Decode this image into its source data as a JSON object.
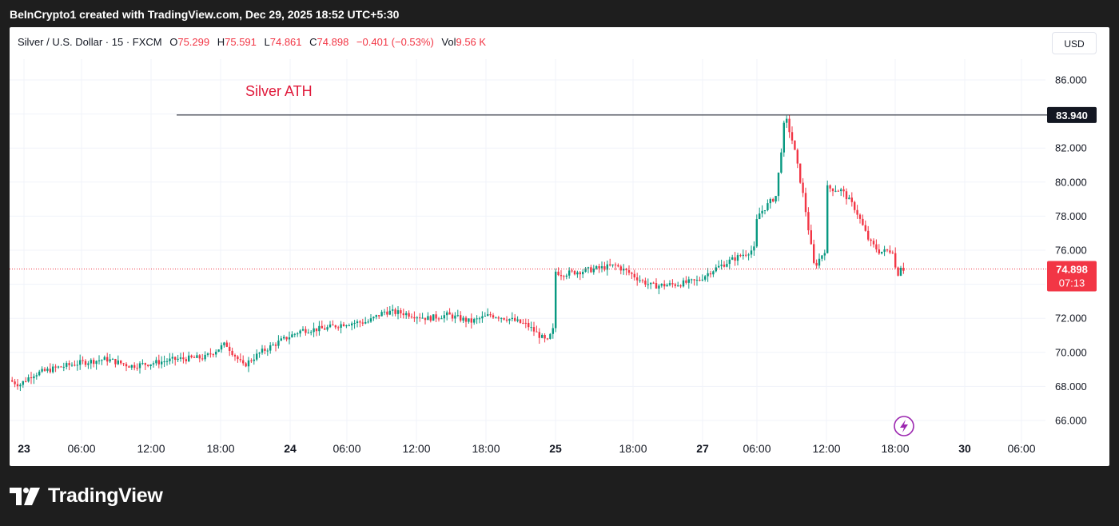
{
  "header": {
    "credit": "BeInCrypto1 created with TradingView.com, Dec 29, 2025 18:52 UTC+5:30"
  },
  "legend": {
    "symbol": "Silver / U.S. Dollar · 15 · FXCM",
    "open_label": "O",
    "open": "75.299",
    "high_label": "H",
    "high": "75.591",
    "low_label": "L",
    "low": "74.861",
    "close_label": "C",
    "close": "74.898",
    "change": "−0.401 (−0.53%)",
    "vol_label": "Vol",
    "vol": "9.56 K"
  },
  "currency_button": "USD",
  "footer": {
    "brand": "TradingView"
  },
  "colors": {
    "up": "#089981",
    "down": "#f23645",
    "annotation": "#e0193a",
    "accent": "#9c27b0"
  },
  "chart_data": {
    "type": "candlestick",
    "title": "Silver / U.S. Dollar · 15 · FXCM",
    "ylim": [
      65.0,
      87.0
    ],
    "y_ticks": [
      66.0,
      68.0,
      70.0,
      72.0,
      74.0,
      76.0,
      78.0,
      80.0,
      82.0,
      84.0,
      86.0
    ],
    "hidden_ticks": [
      74.0,
      84.0
    ],
    "x_ticks": [
      "23",
      "06:00",
      "12:00",
      "18:00",
      "24",
      "06:00",
      "12:00",
      "18:00",
      "25",
      "18:00",
      "27",
      "06:00",
      "12:00",
      "18:00",
      "30",
      "06:00"
    ],
    "bold_x_ticks": [
      "23",
      "24",
      "25",
      "27",
      "30"
    ],
    "price_path": [
      [
        0,
        68.4
      ],
      [
        0.17,
        68.1
      ],
      [
        0.35,
        68.7
      ],
      [
        0.7,
        69.1
      ],
      [
        1.05,
        69.4
      ],
      [
        1.4,
        69.6
      ],
      [
        1.75,
        69.2
      ],
      [
        2.1,
        69.4
      ],
      [
        2.4,
        69.6
      ],
      [
        2.8,
        69.7
      ],
      [
        3.1,
        70.5
      ],
      [
        3.35,
        69.2
      ],
      [
        3.6,
        70.0
      ],
      [
        3.9,
        70.7
      ],
      [
        4.2,
        71.3
      ],
      [
        4.55,
        71.4
      ],
      [
        4.85,
        71.7
      ],
      [
        5.2,
        71.8
      ],
      [
        5.45,
        72.4
      ],
      [
        5.75,
        72.3
      ],
      [
        6.1,
        72.0
      ],
      [
        6.4,
        72.2
      ],
      [
        6.75,
        71.8
      ],
      [
        7.05,
        72.2
      ],
      [
        7.3,
        72.0
      ],
      [
        7.6,
        71.6
      ],
      [
        7.9,
        70.6
      ],
      [
        8.1,
        71.4
      ],
      [
        8.3,
        71.8
      ],
      [
        8.55,
        72.0
      ],
      [
        8.8,
        71.8
      ],
      [
        8.9,
        74.8
      ],
      [
        9.1,
        74.6
      ],
      [
        9.4,
        74.8
      ],
      [
        9.8,
        75.1
      ],
      [
        10.0,
        74.6
      ],
      [
        10.15,
        74.2
      ],
      [
        10.3,
        73.9
      ],
      [
        10.65,
        74.0
      ],
      [
        10.95,
        74.2
      ],
      [
        11.2,
        74.8
      ],
      [
        11.55,
        75.4
      ],
      [
        12.0,
        76.1
      ],
      [
        12.4,
        76.8
      ],
      [
        12.7,
        77.4
      ],
      [
        13.05,
        78.1
      ],
      [
        13.3,
        79.2
      ],
      [
        13.43,
        83.9
      ],
      [
        13.55,
        82.2
      ],
      [
        13.7,
        79.0
      ],
      [
        13.85,
        75.0
      ],
      [
        14.0,
        76.0
      ],
      [
        14.2,
        77.5
      ],
      [
        14.4,
        77.9
      ],
      [
        14.55,
        79.0
      ],
      [
        14.75,
        80.1
      ],
      [
        15.0,
        79.7
      ],
      [
        15.25,
        79.5
      ],
      [
        15.45,
        78.4
      ],
      [
        15.65,
        76.5
      ],
      [
        15.8,
        75.9
      ],
      [
        16.0,
        76.0
      ],
      [
        16.2,
        74.5
      ],
      [
        16.45,
        75.3
      ],
      [
        16.7,
        75.1
      ],
      [
        16.95,
        74.3
      ],
      [
        17.2,
        74.8
      ],
      [
        17.4,
        75.2
      ],
      [
        17.6,
        74.9
      ]
    ],
    "ath": {
      "label": "Silver ATH",
      "value": 83.94,
      "value_label": "83.940"
    },
    "last_price": {
      "value": 74.898,
      "value_label": "74.898",
      "countdown": "07:13"
    }
  }
}
